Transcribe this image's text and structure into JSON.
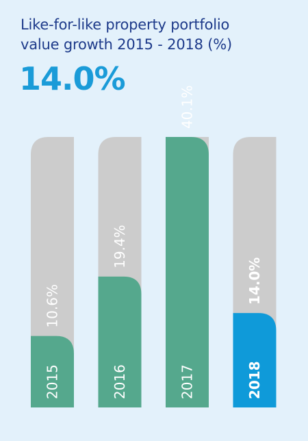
{
  "header": {
    "title_line1": "Like-for-like property portfolio",
    "title_line2": "value growth 2015 - 2018 (%)",
    "headline_value": "14.0%"
  },
  "colors": {
    "background": "#e3f1fb",
    "track": "#cccccc",
    "bar": "#55a88d",
    "highlight": "#0f9ad9",
    "title": "#1d3a8a",
    "headline": "#1a9bd8"
  },
  "chart_data": {
    "type": "bar",
    "orientation": "vertical",
    "categories": [
      "2015",
      "2016",
      "2017",
      "2018"
    ],
    "values": [
      10.6,
      19.4,
      40.1,
      14.0
    ],
    "value_labels": [
      "10.6%",
      "19.4%",
      "40.1%",
      "14.0%"
    ],
    "highlight_category": "2018",
    "ylim": [
      0,
      40.1
    ],
    "grid": false,
    "legend": "none",
    "title": "Like-for-like property portfolio value growth 2015 - 2018 (%)"
  }
}
